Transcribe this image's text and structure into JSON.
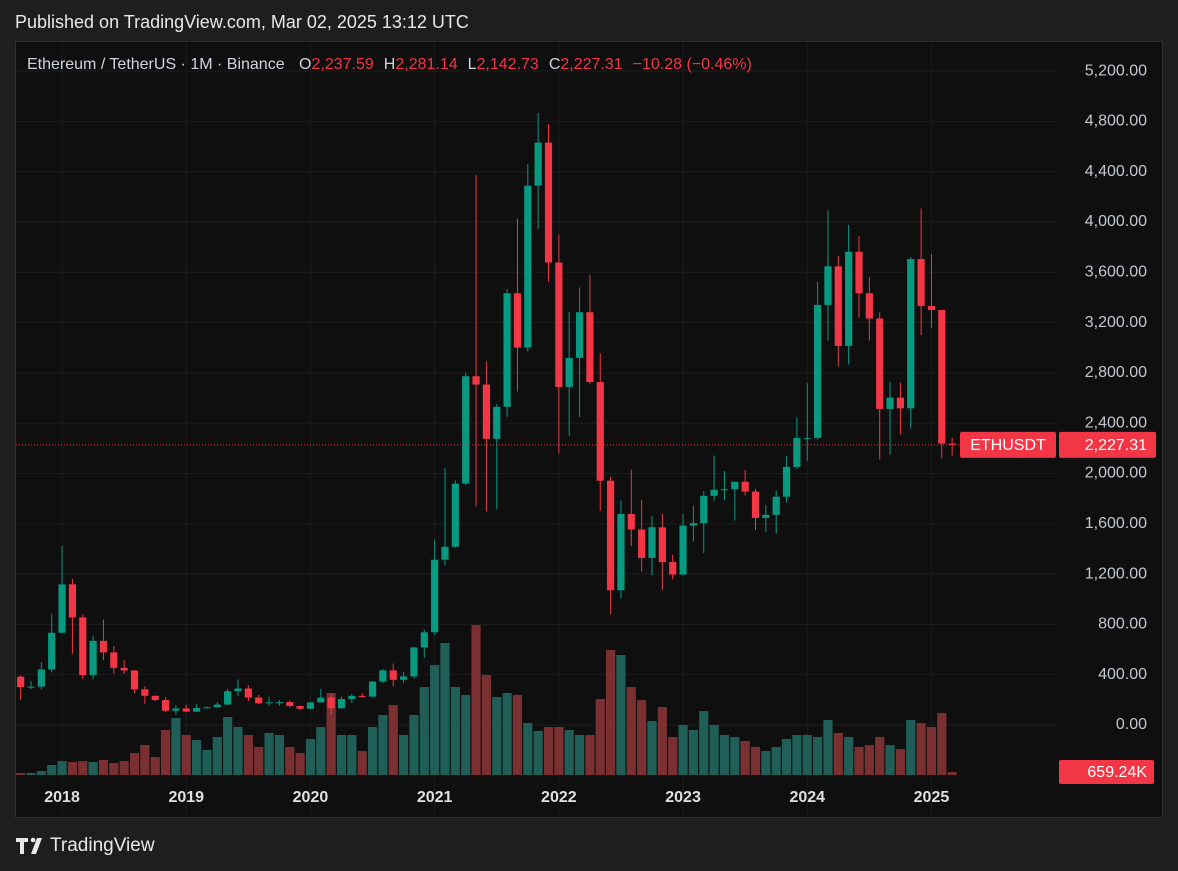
{
  "chart_data": {
    "type": "candlestick",
    "published": "Published on TradingView.com, Mar 02, 2025 13:12 UTC",
    "symbol_line": "Ethereum / TetherUS · 1M · Binance",
    "legend_values": [
      {
        "name": "O",
        "label": "2,237.59"
      },
      {
        "name": "H",
        "label": "2,281.14"
      },
      {
        "name": "L",
        "label": "2,142.73"
      },
      {
        "name": "C",
        "label": "2,227.31"
      }
    ],
    "change_label": "−10.28 (−0.46%)",
    "symbol_tag": "ETHUSDT",
    "last_price_label": "2,227.31",
    "brand": "TradingView",
    "up_color": "#089981",
    "down_color": "#f23645",
    "volume_up_color": "#1f5f57",
    "volume_down_color": "#7a2f31",
    "grid": true,
    "categories": [
      null,
      null,
      null,
      null,
      null,
      "2018",
      null,
      null,
      null,
      null,
      null,
      null,
      null,
      null,
      null,
      null,
      null,
      "2019",
      null,
      null,
      null,
      null,
      null,
      null,
      null,
      null,
      null,
      null,
      null,
      "2020",
      null,
      null,
      null,
      null,
      null,
      null,
      null,
      null,
      null,
      null,
      null,
      "2021",
      null,
      null,
      null,
      null,
      null,
      null,
      null,
      null,
      null,
      null,
      null,
      "2022",
      null,
      null,
      null,
      null,
      null,
      null,
      null,
      null,
      null,
      null,
      null,
      "2023",
      null,
      null,
      null,
      null,
      null,
      null,
      null,
      null,
      null,
      null,
      null,
      "2024",
      null,
      null,
      null,
      null,
      null,
      null,
      null,
      null,
      null,
      null,
      null,
      "2025",
      null,
      null
    ],
    "open": [
      301,
      384,
      301,
      305,
      441,
      733,
      1118,
      855,
      396,
      669,
      577,
      454,
      433,
      283,
      232,
      198,
      113,
      131,
      106,
      135,
      141,
      162,
      268,
      290,
      218,
      172,
      180,
      182,
      151,
      129,
      179,
      217,
      133,
      206,
      231,
      225,
      345,
      434,
      359,
      386,
      616,
      737,
      1314,
      1417,
      1919,
      2773,
      2707,
      2275,
      2530,
      3433,
      3001,
      4288,
      4631,
      3677,
      2688,
      2919,
      3282,
      2727,
      1942,
      1071,
      1678,
      1554,
      1328,
      1572,
      1295,
      1196,
      1585,
      1605,
      1822,
      1870,
      1875,
      1934,
      1856,
      1646,
      1671,
      1815,
      2052,
      2282,
      2283,
      3340,
      3647,
      3014,
      3763,
      3433,
      3232,
      2513,
      2603,
      2518,
      3705,
      3332,
      3300,
      2237.59
    ],
    "high": [
      395,
      394,
      350,
      500,
      884,
      1424,
      1161,
      880,
      710,
      839,
      628,
      516,
      437,
      306,
      233,
      223,
      157,
      160,
      165,
      148,
      184,
      287,
      362,
      318,
      238,
      224,
      198,
      194,
      153,
      183,
      288,
      253,
      227,
      246,
      253,
      349,
      445,
      488,
      420,
      623,
      757,
      1475,
      2042,
      1946,
      2800,
      4372,
      2891,
      2551,
      3466,
      4027,
      4460,
      4868,
      4778,
      3900,
      3286,
      3479,
      3580,
      2955,
      1974,
      1785,
      2030,
      1790,
      1664,
      1679,
      1353,
      1677,
      1743,
      1858,
      2142,
      2019,
      1931,
      2029,
      1877,
      1750,
      1865,
      2137,
      2445,
      2717,
      3523,
      4093,
      3730,
      3977,
      3887,
      3563,
      3280,
      2728,
      2722,
      3720,
      4107,
      3745,
      3302,
      2281.14
    ],
    "low": [
      278,
      197,
      285,
      282,
      418,
      733,
      565,
      366,
      365,
      515,
      407,
      406,
      252,
      167,
      190,
      101,
      82,
      101,
      102,
      128,
      139,
      158,
      230,
      191,
      164,
      152,
      153,
      140,
      117,
      126,
      179,
      86,
      130,
      176,
      216,
      222,
      334,
      308,
      333,
      370,
      534,
      714,
      1268,
      1410,
      1908,
      1736,
      1700,
      1718,
      2450,
      2652,
      2971,
      3946,
      3525,
      2159,
      2300,
      2449,
      2714,
      1704,
      880,
      1006,
      1422,
      1220,
      1190,
      1073,
      1158,
      1190,
      1461,
      1368,
      1784,
      1786,
      1626,
      1825,
      1550,
      1531,
      1521,
      1770,
      2036,
      2101,
      2268,
      3056,
      2852,
      2865,
      3240,
      3057,
      2111,
      2150,
      2310,
      2357,
      3100,
      3156,
      2120,
      2142.73
    ],
    "close": [
      384,
      301,
      305,
      441,
      733,
      1118,
      855,
      396,
      669,
      577,
      454,
      433,
      283,
      232,
      198,
      113,
      131,
      106,
      135,
      141,
      162,
      268,
      290,
      218,
      172,
      180,
      182,
      151,
      129,
      179,
      217,
      133,
      206,
      231,
      225,
      345,
      434,
      359,
      386,
      616,
      737,
      1314,
      1417,
      1919,
      2773,
      2707,
      2275,
      2530,
      3433,
      3001,
      4288,
      4631,
      3677,
      2688,
      2919,
      3282,
      2727,
      1942,
      1071,
      1678,
      1554,
      1328,
      1572,
      1295,
      1196,
      1585,
      1605,
      1822,
      1870,
      1875,
      1934,
      1856,
      1646,
      1671,
      1815,
      2052,
      2282,
      2283,
      3340,
      3647,
      3014,
      3763,
      3433,
      3232,
      2513,
      2603,
      2518,
      3705,
      3332,
      3300,
      2237.59,
      2227.31
    ],
    "volume": {
      "values": [
        220000,
        440000,
        440000,
        880000,
        2200000,
        3080000,
        2860000,
        3080000,
        2860000,
        3300000,
        2640000,
        3080000,
        4840000,
        6600000,
        3960000,
        9900000,
        12540000,
        8800000,
        7700000,
        5500000,
        8360000,
        12760000,
        10560000,
        8800000,
        6160000,
        9240000,
        8800000,
        6160000,
        4840000,
        7920000,
        10560000,
        18040000,
        8800000,
        8800000,
        5280000,
        10560000,
        13200000,
        15400000,
        8800000,
        13200000,
        19360000,
        24200000,
        29040000,
        19360000,
        17600000,
        33000000,
        22000000,
        17160000,
        18040000,
        17600000,
        11440000,
        9680000,
        10560000,
        10560000,
        9900000,
        8800000,
        8800000,
        16720000,
        27500000,
        26400000,
        19360000,
        16500000,
        11880000,
        14960000,
        8360000,
        11000000,
        9900000,
        14080000,
        11000000,
        8800000,
        8360000,
        7480000,
        6160000,
        5280000,
        6160000,
        7920000,
        8800000,
        8800000,
        8360000,
        12100000,
        9240000,
        8360000,
        6160000,
        6600000,
        8360000,
        6600000,
        5720000,
        12100000,
        11440000,
        10560000,
        13640000,
        659240
      ],
      "last_label": "659.24K"
    },
    "ylim": [
      -398,
      5431
    ],
    "yticks": [
      {
        "value": 0,
        "label": "0.00"
      },
      {
        "value": 400,
        "label": "400.00"
      },
      {
        "value": 800,
        "label": "800.00"
      },
      {
        "value": 1200,
        "label": "1,200.00"
      },
      {
        "value": 1600,
        "label": "1,600.00"
      },
      {
        "value": 2000,
        "label": "2,000.00"
      },
      {
        "value": 2400,
        "label": "2,400.00"
      },
      {
        "value": 2800,
        "label": "2,800.00"
      },
      {
        "value": 3200,
        "label": "3,200.00"
      },
      {
        "value": 3600,
        "label": "3,600.00"
      },
      {
        "value": 4000,
        "label": "4,000.00"
      },
      {
        "value": 4400,
        "label": "4,400.00"
      },
      {
        "value": 4800,
        "label": "4,800.00"
      },
      {
        "value": 5200,
        "label": "5,200.00"
      }
    ]
  }
}
